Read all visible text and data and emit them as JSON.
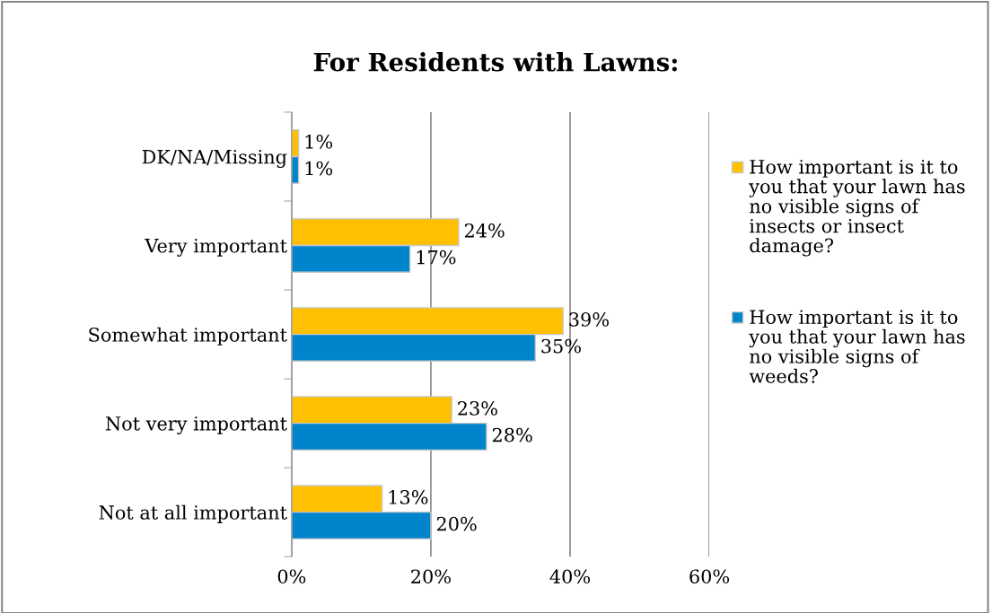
{
  "chart_data": {
    "type": "bar",
    "orientation": "horizontal",
    "title": "For Residents with Lawns:",
    "categories": [
      "DK/NA/Missing",
      "Very important",
      "Somewhat important",
      "Not very important",
      "Not at all important"
    ],
    "series": [
      {
        "name": "How important is it to you that your lawn has no visible signs of insects or insect damage?",
        "color": "#ffc000",
        "values": [
          1,
          24,
          39,
          23,
          13
        ],
        "value_labels": [
          "1%",
          "24%",
          "39%",
          "23%",
          "13%"
        ]
      },
      {
        "name": "How important is it to you that your lawn has no visible signs of weeds?",
        "color": "#0084cc",
        "values": [
          1,
          17,
          35,
          28,
          20
        ],
        "value_labels": [
          "1%",
          "17%",
          "35%",
          "28%",
          "20%"
        ]
      }
    ],
    "xlim": [
      0,
      60
    ],
    "xticks": [
      {
        "value": 0,
        "label": "0%"
      },
      {
        "value": 20,
        "label": "20%"
      },
      {
        "value": 40,
        "label": "40%"
      },
      {
        "value": 60,
        "label": "60%"
      }
    ],
    "grid": "x",
    "legend": "right"
  }
}
